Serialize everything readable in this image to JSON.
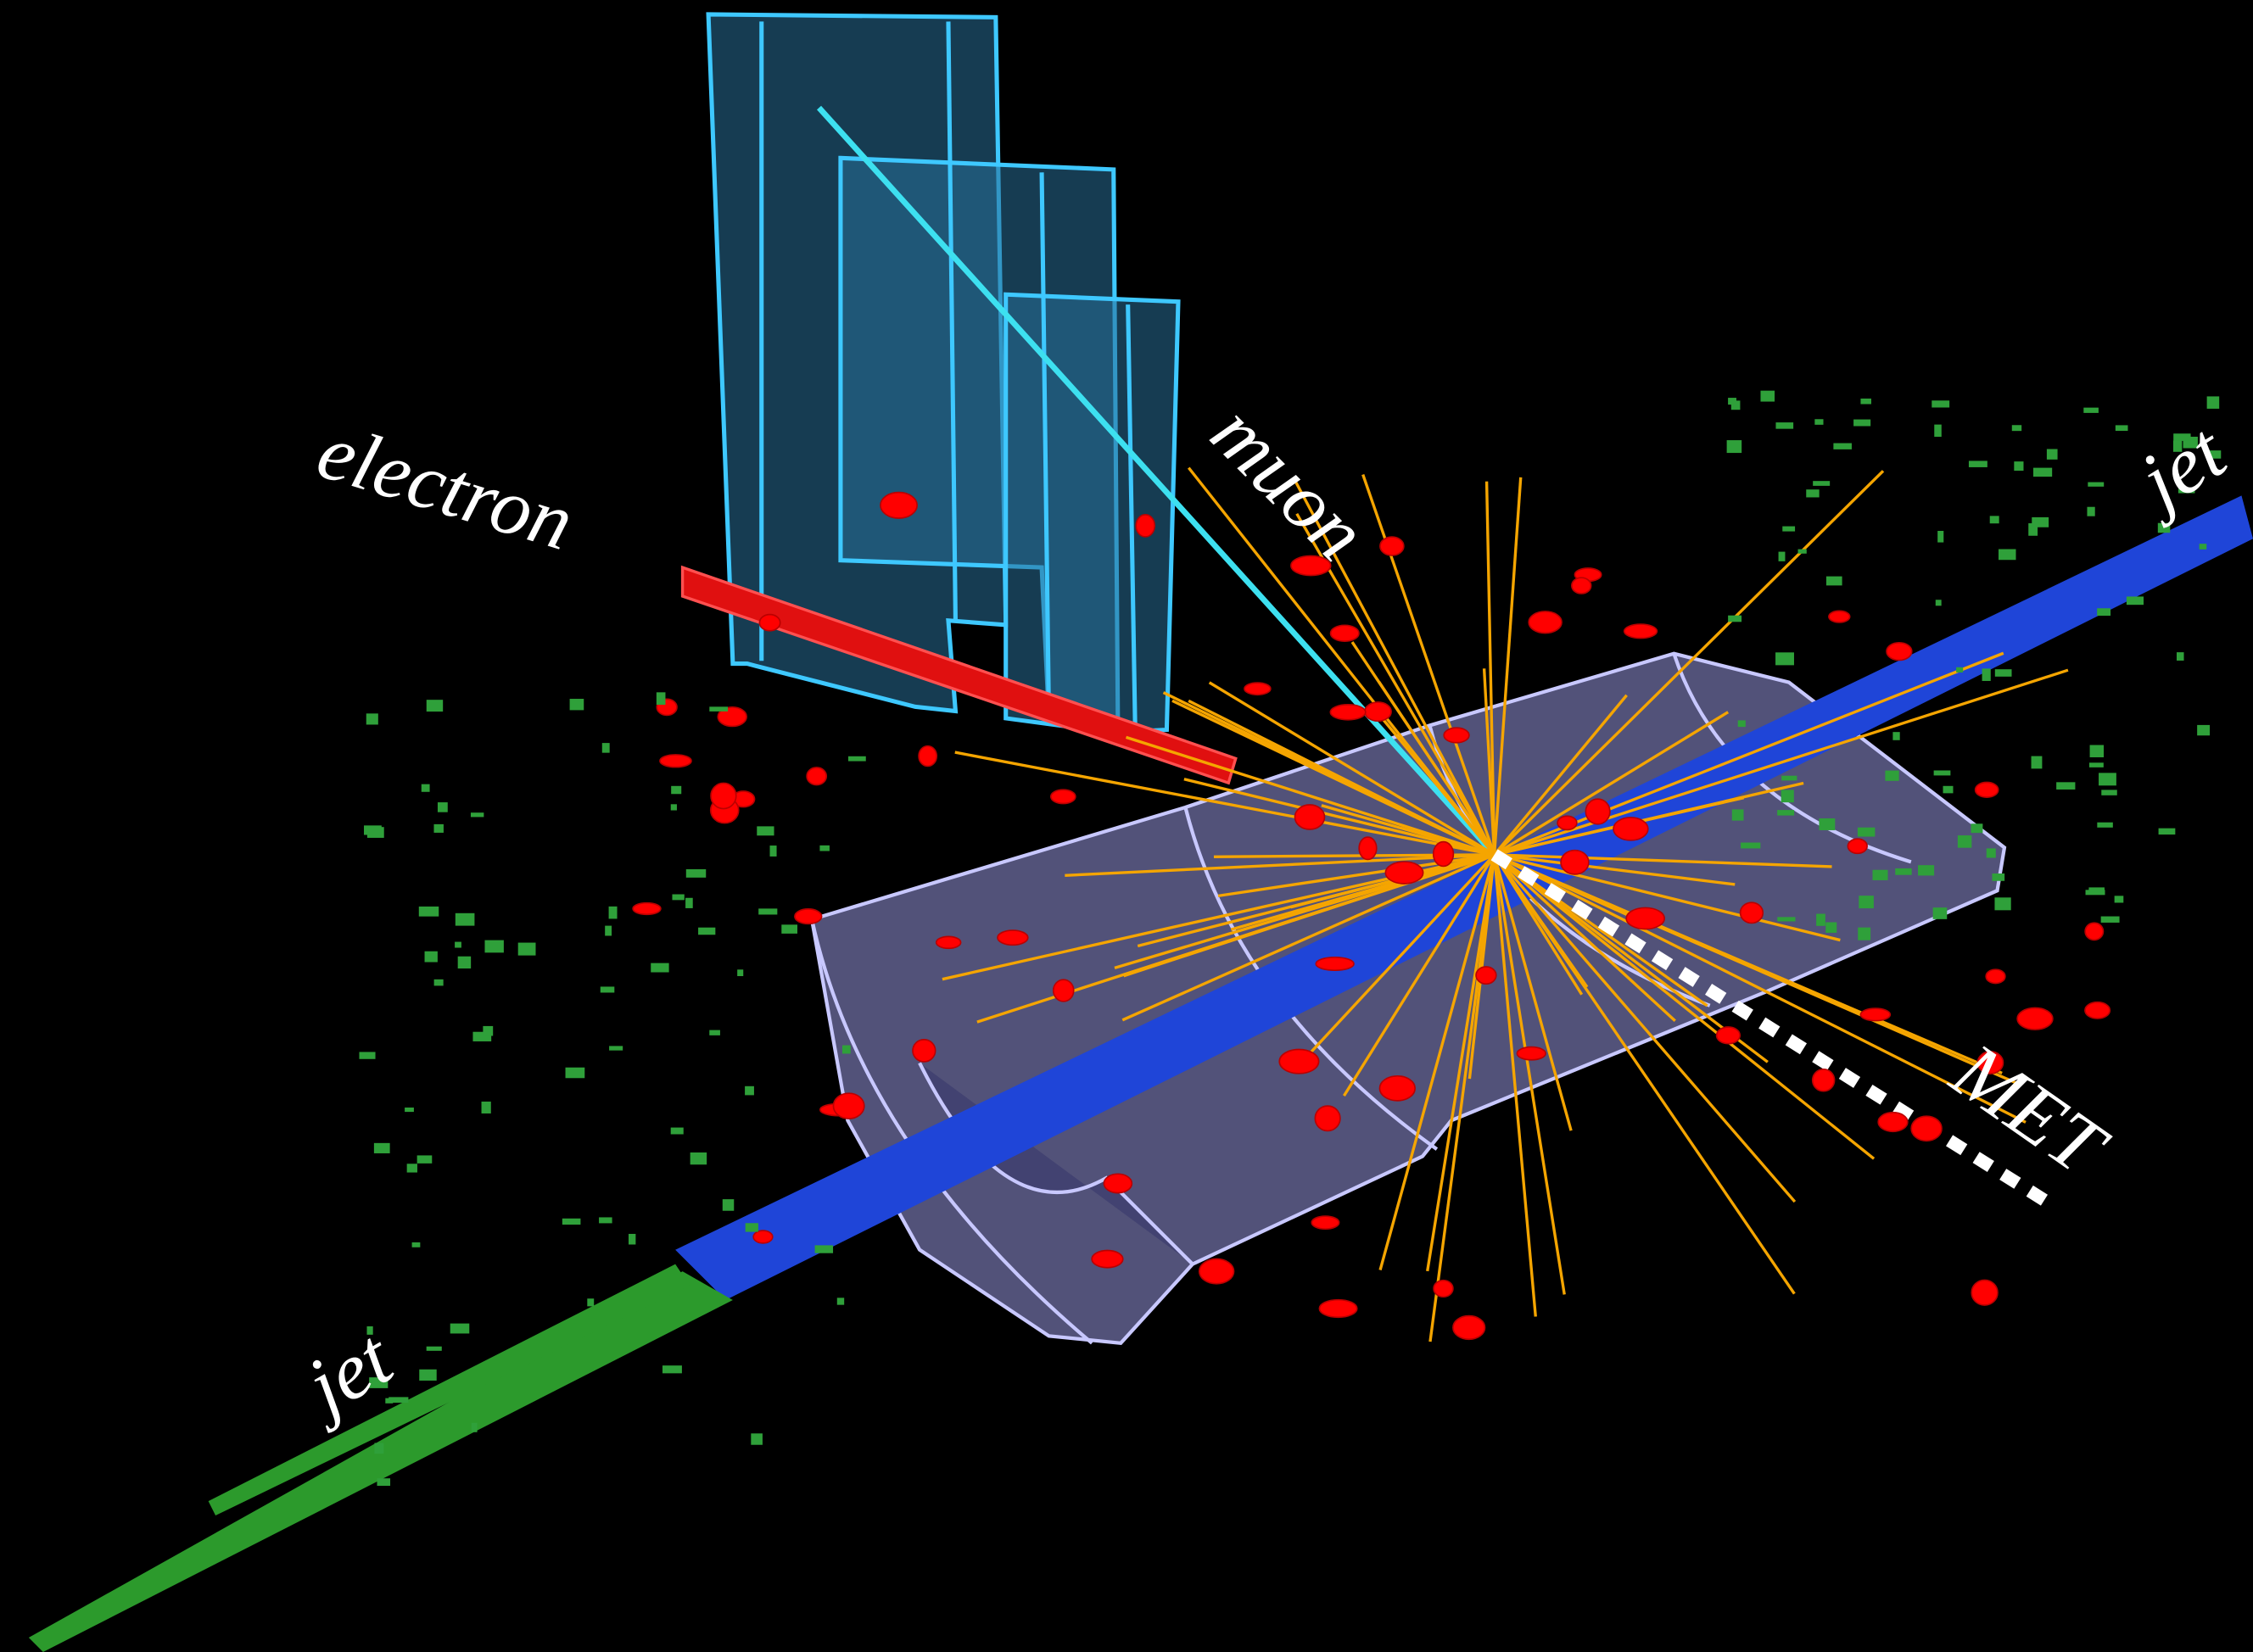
{
  "labels": {
    "electron": "electron",
    "muon": "muon",
    "jet_upper": "jet",
    "met": "MET",
    "jet_lower": "jet"
  }
}
